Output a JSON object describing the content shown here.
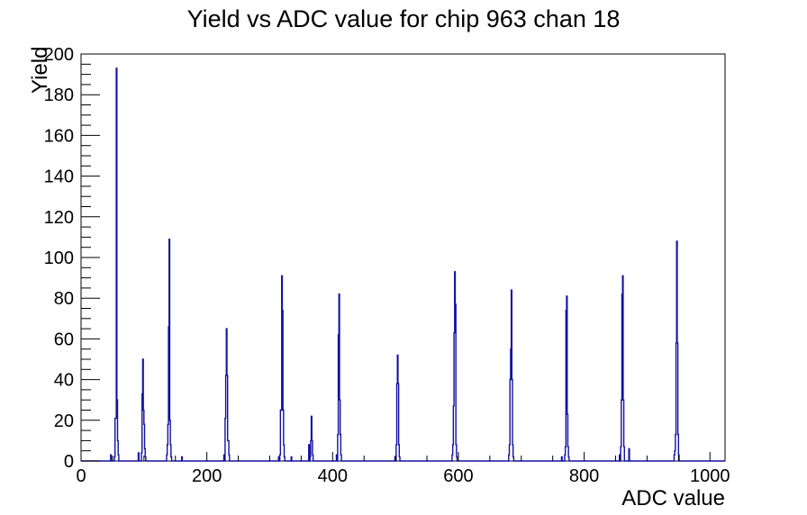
{
  "chart_data": {
    "type": "bar",
    "style": "root-histogram-outline",
    "title": "Yield vs ADC value for chip 963 chan 18",
    "xlabel": "ADC value",
    "ylabel": "Yield",
    "xlim": [
      0,
      1024
    ],
    "ylim": [
      0,
      200
    ],
    "x_major_ticks": [
      0,
      200,
      400,
      600,
      800,
      1000
    ],
    "x_minor_step": 50,
    "y_major_ticks": [
      0,
      20,
      40,
      60,
      80,
      100,
      120,
      140,
      160,
      180,
      200
    ],
    "y_minor_step": 5,
    "grid": "off",
    "legend": "none",
    "line_color": "#1111a0",
    "axis_color": "#000000",
    "background_color": "#ffffff",
    "bins_format": "[adc_value, yield] sparse histogram bins, bin width 1 ADC, all unlisted bins are 0",
    "bins": [
      [
        47,
        3
      ],
      [
        53,
        2
      ],
      [
        54,
        21
      ],
      [
        55,
        21
      ],
      [
        56,
        193
      ],
      [
        57,
        30
      ],
      [
        58,
        10
      ],
      [
        59,
        3
      ],
      [
        91,
        4
      ],
      [
        96,
        4
      ],
      [
        97,
        33
      ],
      [
        98,
        50
      ],
      [
        99,
        25
      ],
      [
        100,
        18
      ],
      [
        101,
        6
      ],
      [
        102,
        2
      ],
      [
        136,
        3
      ],
      [
        137,
        8
      ],
      [
        138,
        18
      ],
      [
        139,
        66
      ],
      [
        140,
        109
      ],
      [
        141,
        20
      ],
      [
        142,
        8
      ],
      [
        143,
        2
      ],
      [
        160,
        2
      ],
      [
        227,
        3
      ],
      [
        229,
        21
      ],
      [
        230,
        42
      ],
      [
        231,
        65
      ],
      [
        232,
        42
      ],
      [
        233,
        10
      ],
      [
        234,
        10
      ],
      [
        235,
        3
      ],
      [
        314,
        2
      ],
      [
        316,
        3
      ],
      [
        317,
        25
      ],
      [
        318,
        25
      ],
      [
        319,
        91
      ],
      [
        320,
        74
      ],
      [
        321,
        25
      ],
      [
        322,
        8
      ],
      [
        323,
        2
      ],
      [
        334,
        2
      ],
      [
        362,
        8
      ],
      [
        364,
        2
      ],
      [
        365,
        10
      ],
      [
        366,
        22
      ],
      [
        367,
        10
      ],
      [
        368,
        3
      ],
      [
        406,
        3
      ],
      [
        408,
        13
      ],
      [
        409,
        62
      ],
      [
        410,
        82
      ],
      [
        411,
        30
      ],
      [
        412,
        13
      ],
      [
        413,
        3
      ],
      [
        499,
        2
      ],
      [
        501,
        8
      ],
      [
        502,
        38
      ],
      [
        503,
        52
      ],
      [
        504,
        38
      ],
      [
        505,
        8
      ],
      [
        506,
        2
      ],
      [
        590,
        3
      ],
      [
        591,
        8
      ],
      [
        592,
        27
      ],
      [
        593,
        63
      ],
      [
        594,
        93
      ],
      [
        595,
        77
      ],
      [
        596,
        8
      ],
      [
        597,
        2
      ],
      [
        680,
        3
      ],
      [
        681,
        8
      ],
      [
        682,
        40
      ],
      [
        683,
        55
      ],
      [
        684,
        84
      ],
      [
        685,
        40
      ],
      [
        686,
        8
      ],
      [
        687,
        2
      ],
      [
        764,
        2
      ],
      [
        769,
        3
      ],
      [
        770,
        7
      ],
      [
        771,
        74
      ],
      [
        772,
        81
      ],
      [
        773,
        23
      ],
      [
        774,
        7
      ],
      [
        775,
        2
      ],
      [
        856,
        3
      ],
      [
        858,
        7
      ],
      [
        859,
        30
      ],
      [
        860,
        82
      ],
      [
        861,
        91
      ],
      [
        862,
        30
      ],
      [
        863,
        7
      ],
      [
        871,
        6
      ],
      [
        943,
        3
      ],
      [
        944,
        5
      ],
      [
        945,
        13
      ],
      [
        946,
        58
      ],
      [
        947,
        108
      ],
      [
        948,
        58
      ],
      [
        949,
        13
      ],
      [
        950,
        3
      ]
    ]
  }
}
